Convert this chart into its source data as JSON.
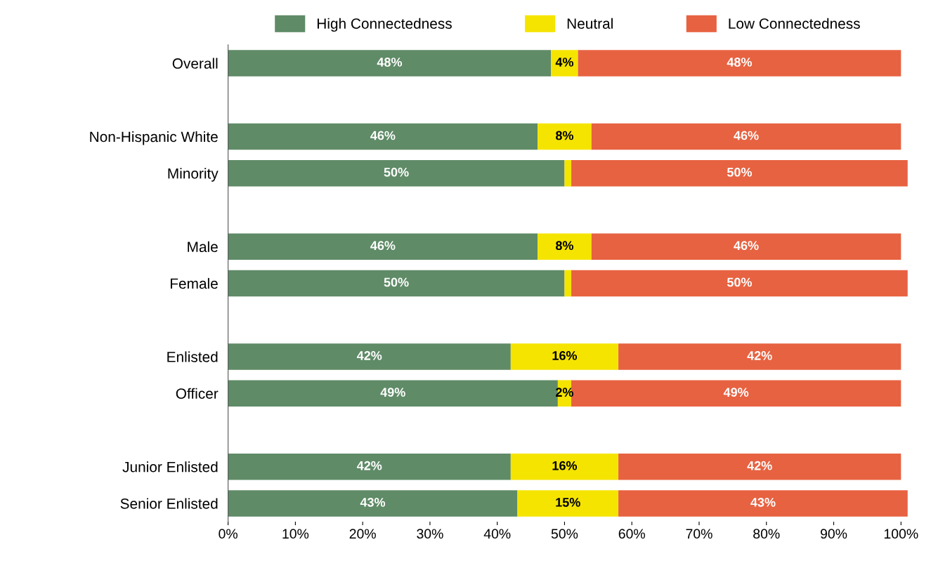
{
  "chart_data": {
    "type": "bar",
    "orientation": "horizontal",
    "stacked": true,
    "categories": [
      "Overall",
      null,
      "Non-Hispanic White",
      "Minority",
      null,
      "Male",
      "Female",
      null,
      "Enlisted",
      "Officer",
      null,
      "Junior Enlisted",
      "Senior Enlisted"
    ],
    "series": [
      {
        "name": "High Connectedness",
        "color": "#5f8b67",
        "values": [
          48,
          null,
          46,
          50,
          null,
          46,
          50,
          null,
          42,
          49,
          null,
          42,
          43
        ],
        "value_labels": [
          "48%",
          null,
          "46%",
          "50%",
          null,
          "46%",
          "50%",
          null,
          "42%",
          "49%",
          null,
          "42%",
          "43%"
        ]
      },
      {
        "name": "Neutral",
        "color": "#f5e400",
        "values": [
          4,
          null,
          8,
          1,
          null,
          8,
          1,
          null,
          16,
          2,
          null,
          16,
          15
        ],
        "value_labels": [
          "4%",
          null,
          "8%",
          null,
          null,
          "8%",
          null,
          null,
          "16%",
          "2%",
          null,
          "16%",
          "15%"
        ]
      },
      {
        "name": "Low Connectedness",
        "color": "#e76241",
        "values": [
          48,
          null,
          46,
          50,
          null,
          46,
          50,
          null,
          42,
          49,
          null,
          42,
          43
        ],
        "value_labels": [
          "48%",
          null,
          "46%",
          "50%",
          null,
          "46%",
          "50%",
          null,
          "42%",
          "49%",
          null,
          "42%",
          "43%"
        ]
      }
    ],
    "xlim": [
      0,
      101
    ],
    "xticks": [
      {
        "value": 0,
        "label": "0%"
      },
      {
        "value": 10,
        "label": "10%"
      },
      {
        "value": 20,
        "label": "20%"
      },
      {
        "value": 30,
        "label": "30%"
      },
      {
        "value": 40,
        "label": "40%"
      },
      {
        "value": 50,
        "label": "50%"
      },
      {
        "value": 60,
        "label": "60%"
      },
      {
        "value": 70,
        "label": "70%"
      },
      {
        "value": 80,
        "label": "80%"
      },
      {
        "value": 90,
        "label": "90%"
      },
      {
        "value": 100,
        "label": "100%"
      }
    ],
    "legend": "top",
    "grid": false
  }
}
